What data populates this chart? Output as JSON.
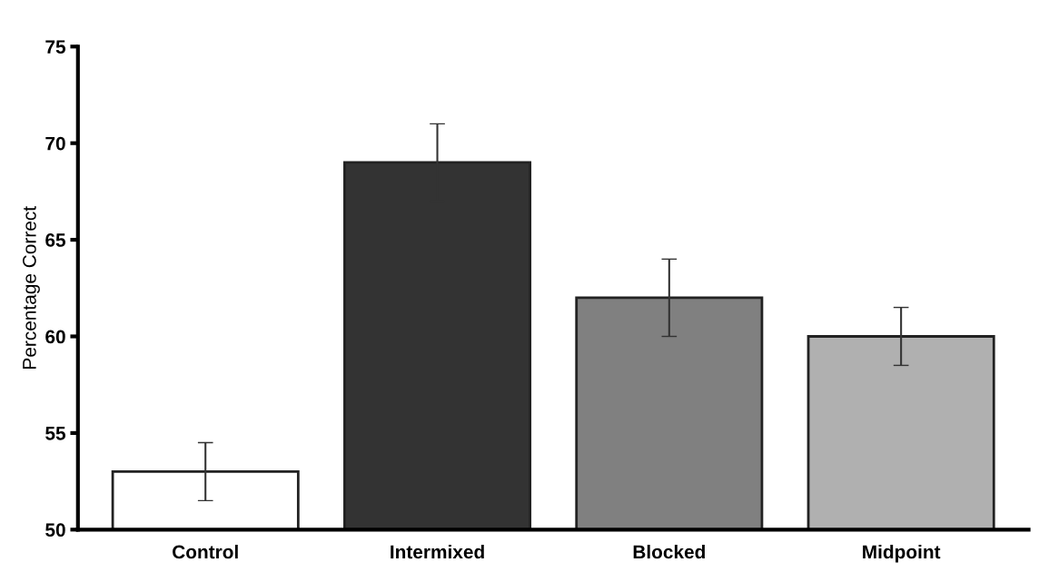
{
  "chart_data": {
    "type": "bar",
    "ylabel": "Percentage Correct",
    "categories": [
      "Control",
      "Intermixed",
      "Blocked",
      "Midpoint"
    ],
    "values": [
      53.0,
      69.0,
      62.0,
      60.0
    ],
    "errors": [
      1.5,
      2.0,
      2.0,
      1.5
    ],
    "colors": [
      "#ffffff",
      "#333333",
      "#808080",
      "#b0b0b0"
    ],
    "ylim": [
      50,
      75
    ],
    "yticks": [
      50,
      55,
      60,
      65,
      70,
      75
    ],
    "grid": false,
    "legend": false
  }
}
